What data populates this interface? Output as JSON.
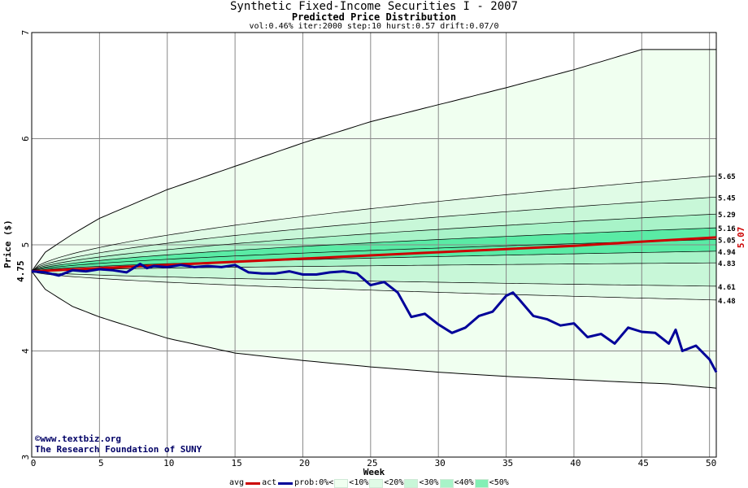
{
  "header": {
    "title": "Synthetic Fixed-Income Securities I - 2007",
    "subtitle": "Predicted Price Distribution",
    "params": "vol:0.46% iter:2000 step:10 hurst:0.57 drift:0.07/0"
  },
  "credits": {
    "url": "©www.textbiz.org",
    "org": "The Research Foundation of SUNY"
  },
  "legend": {
    "avg": "avg",
    "act": "act",
    "prob": "prob:0%<",
    "b10": "<10%",
    "b20": "<20%",
    "b30": "<30%",
    "b40": "<40%",
    "b50": "<50%"
  },
  "colors": {
    "avg_line": "#cc0000",
    "act_line": "#000099",
    "band_0": "#f0fff0",
    "band_10": "#e0fbe6",
    "band_20": "#c8f7d8",
    "band_30": "#a8f3c8",
    "band_40": "#82efb5",
    "band_50": "#5aeba5"
  },
  "chart_data": {
    "type": "area",
    "title": "Synthetic Fixed-Income Securities I - 2007",
    "subtitle": "Predicted Price Distribution",
    "xlabel": "Week",
    "ylabel": "Price ($)",
    "xlim": [
      0,
      50.5
    ],
    "ylim": [
      3,
      7
    ],
    "xticks": [
      0,
      5,
      10,
      15,
      20,
      25,
      30,
      35,
      40,
      45,
      50
    ],
    "yticks": [
      3,
      4,
      5,
      6,
      7
    ],
    "grid": true,
    "start_value": 4.75,
    "start_label": "4.75",
    "end_avg_label": "5.07",
    "boundary_weeks": [
      0,
      1,
      3,
      5,
      10,
      15,
      20,
      25,
      30,
      35,
      40,
      45,
      47,
      50.5
    ],
    "upper_boundary": [
      4.75,
      4.93,
      5.1,
      5.25,
      5.52,
      5.74,
      5.96,
      6.16,
      6.32,
      6.48,
      6.65,
      6.84,
      6.84,
      6.84
    ],
    "lower_boundary": [
      4.75,
      4.58,
      4.42,
      4.32,
      4.12,
      3.98,
      3.91,
      3.85,
      3.8,
      3.76,
      3.73,
      3.7,
      3.69,
      3.65
    ],
    "percentile_labels": [
      "5.65",
      "5.45",
      "5.29",
      "5.16",
      "5.05",
      "4.94",
      "4.83",
      "4.61",
      "4.48"
    ],
    "percentile_end_values": [
      5.65,
      5.45,
      5.29,
      5.16,
      5.05,
      4.94,
      4.83,
      4.61,
      4.48
    ],
    "series": [
      {
        "name": "avg",
        "x": [
          0,
          5,
          10,
          15,
          20,
          25,
          30,
          35,
          40,
          45,
          50.5
        ],
        "values": [
          4.75,
          4.78,
          4.81,
          4.84,
          4.87,
          4.9,
          4.93,
          4.96,
          4.99,
          5.03,
          5.07
        ]
      },
      {
        "name": "act",
        "x": [
          0,
          1,
          2,
          3,
          4,
          5,
          6,
          7,
          8,
          8.5,
          9,
          10,
          11,
          12,
          13,
          14,
          15,
          16,
          17,
          18,
          19,
          20,
          21,
          22,
          23,
          24,
          25,
          26,
          27,
          28,
          29,
          30,
          31,
          32,
          33,
          34,
          35,
          35.5,
          36,
          37,
          38,
          39,
          40,
          41,
          42,
          43,
          44,
          45,
          46,
          47,
          47.5,
          48,
          49,
          50,
          50.5
        ],
        "values": [
          4.75,
          4.74,
          4.71,
          4.76,
          4.75,
          4.77,
          4.76,
          4.74,
          4.82,
          4.78,
          4.8,
          4.79,
          4.81,
          4.79,
          4.8,
          4.79,
          4.81,
          4.74,
          4.73,
          4.73,
          4.75,
          4.72,
          4.72,
          4.74,
          4.75,
          4.73,
          4.62,
          4.65,
          4.55,
          4.32,
          4.35,
          4.25,
          4.17,
          4.22,
          4.33,
          4.37,
          4.52,
          4.55,
          4.48,
          4.33,
          4.3,
          4.24,
          4.26,
          4.13,
          4.16,
          4.07,
          4.22,
          4.18,
          4.17,
          4.07,
          4.2,
          4.0,
          4.05,
          3.92,
          3.8
        ]
      }
    ]
  }
}
